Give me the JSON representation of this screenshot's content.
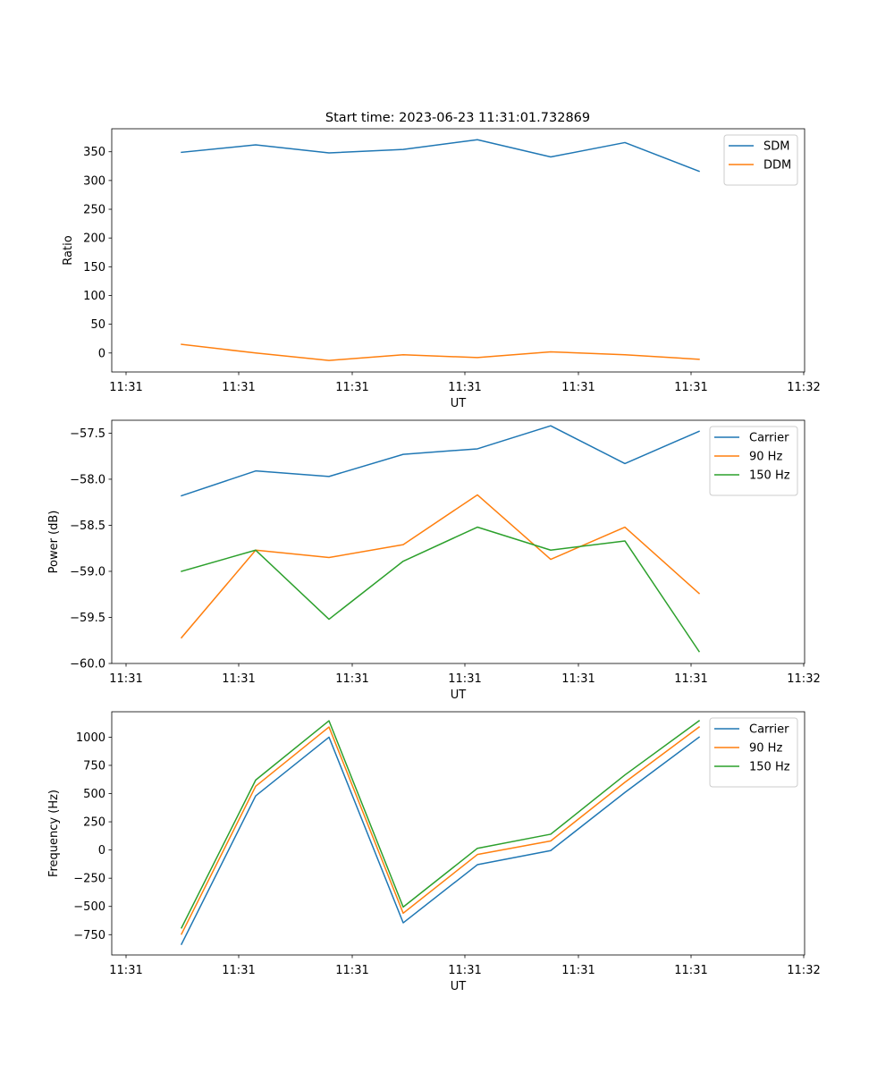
{
  "figure": {
    "title": "Start time: 2023-06-23 11:31:01.732869"
  },
  "chart_data": [
    {
      "type": "line",
      "title": "Start time: 2023-06-23 11:31:01.732869",
      "xlabel": "UT",
      "ylabel": "Ratio",
      "x_tick_labels": [
        "11:31",
        "11:31",
        "11:31",
        "11:31",
        "11:31",
        "11:31",
        "11:32"
      ],
      "ylim": [
        -33,
        390
      ],
      "y_ticks": [
        0,
        50,
        100,
        150,
        200,
        250,
        300,
        350
      ],
      "y_tick_labels": [
        "0",
        "50",
        "100",
        "150",
        "200",
        "250",
        "300",
        "350"
      ],
      "grid": false,
      "legend_position": "upper right",
      "series": [
        {
          "name": "SDM",
          "color": "#1f77b4",
          "values": [
            349,
            362,
            348,
            354,
            371,
            341,
            366,
            316
          ]
        },
        {
          "name": "DDM",
          "color": "#ff7f0e",
          "values": [
            15,
            0,
            -13,
            -3,
            -8,
            2,
            -3,
            -11
          ]
        }
      ]
    },
    {
      "type": "line",
      "xlabel": "UT",
      "ylabel": "Power (dB)",
      "x_tick_labels": [
        "11:31",
        "11:31",
        "11:31",
        "11:31",
        "11:31",
        "11:31",
        "11:32"
      ],
      "ylim": [
        -60.0,
        -57.36
      ],
      "y_ticks": [
        -60.0,
        -59.5,
        -59.0,
        -58.5,
        -58.0,
        -57.5
      ],
      "y_tick_labels": [
        "−60.0",
        "−59.5",
        "−59.0",
        "−58.5",
        "−58.0",
        "−57.5"
      ],
      "grid": false,
      "legend_position": "upper right",
      "series": [
        {
          "name": "Carrier",
          "color": "#1f77b4",
          "values": [
            -58.18,
            -57.91,
            -57.97,
            -57.73,
            -57.67,
            -57.42,
            -57.83,
            -57.48
          ]
        },
        {
          "name": "90 Hz",
          "color": "#ff7f0e",
          "values": [
            -59.72,
            -58.77,
            -58.85,
            -58.71,
            -58.17,
            -58.87,
            -58.52,
            -59.24
          ]
        },
        {
          "name": "150 Hz",
          "color": "#2ca02c",
          "values": [
            -59.0,
            -58.77,
            -59.52,
            -58.89,
            -58.52,
            -58.77,
            -58.67,
            -59.87
          ]
        }
      ]
    },
    {
      "type": "line",
      "xlabel": "UT",
      "ylabel": "Frequency (Hz)",
      "x_tick_labels": [
        "11:31",
        "11:31",
        "11:31",
        "11:31",
        "11:31",
        "11:31",
        "11:32"
      ],
      "ylim": [
        -930,
        1225
      ],
      "y_ticks": [
        -750,
        -500,
        -250,
        0,
        250,
        500,
        750,
        1000
      ],
      "y_tick_labels": [
        "−750",
        "−500",
        "−250",
        "0",
        "250",
        "500",
        "750",
        "1000"
      ],
      "grid": false,
      "legend_position": "upper right",
      "series": [
        {
          "name": "Carrier",
          "color": "#1f77b4",
          "values": [
            -835,
            480,
            1000,
            -645,
            -130,
            -5,
            510,
            1000
          ]
        },
        {
          "name": "90 Hz",
          "color": "#ff7f0e",
          "values": [
            -745,
            565,
            1090,
            -560,
            -40,
            80,
            600,
            1090
          ]
        },
        {
          "name": "150 Hz",
          "color": "#2ca02c",
          "values": [
            -690,
            620,
            1145,
            -505,
            15,
            140,
            665,
            1145
          ]
        }
      ]
    }
  ]
}
